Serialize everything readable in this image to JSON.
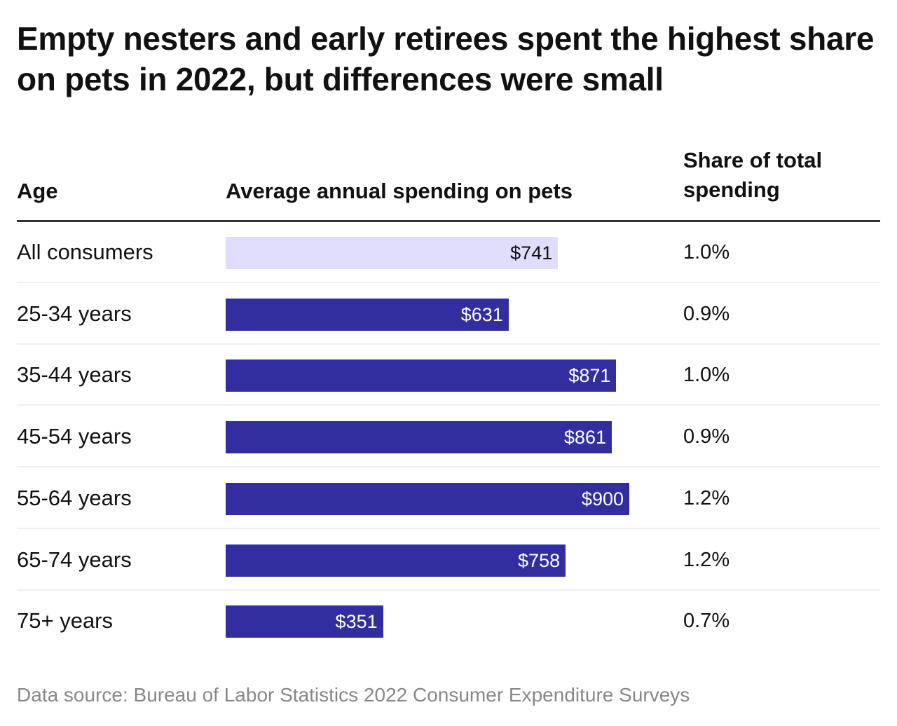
{
  "title": "Empty nesters and early retirees spent the highest share on pets in 2022, but differences were small",
  "source": "Data source: Bureau of Labor Statistics 2022 Consumer Expenditure Surveys",
  "colors": {
    "highlight": "#e0dcfc",
    "bar": "#332ea0"
  },
  "chart_data": {
    "type": "table",
    "columns": [
      "Age",
      "Average annual spending on pets",
      "Share of total spending"
    ],
    "rows": [
      {
        "age": "All consumers",
        "spending": 741,
        "label": "$741",
        "share": "1.0%",
        "highlight": true
      },
      {
        "age": "25-34 years",
        "spending": 631,
        "label": "$631",
        "share": "0.9%"
      },
      {
        "age": "35-44 years",
        "spending": 871,
        "label": "$871",
        "share": "1.0%"
      },
      {
        "age": "45-54 years",
        "spending": 861,
        "label": "$861",
        "share": "0.9%"
      },
      {
        "age": "55-64 years",
        "spending": 900,
        "label": "$900",
        "share": "1.2%"
      },
      {
        "age": "65-74 years",
        "spending": 758,
        "label": "$758",
        "share": "1.2%"
      },
      {
        "age": "75+ years",
        "spending": 351,
        "label": "$351",
        "share": "0.7%"
      }
    ]
  }
}
